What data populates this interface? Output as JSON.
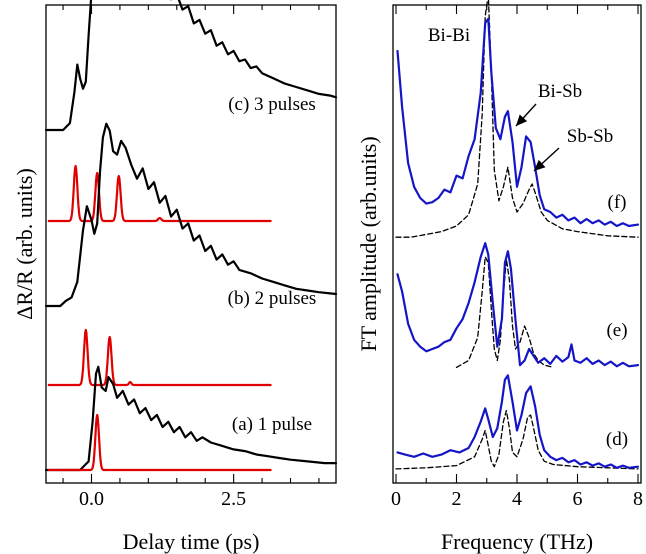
{
  "colors": {
    "black": "#000000",
    "red": "#e00000",
    "blue": "#1515c8"
  },
  "chart_data": [
    {
      "type": "line",
      "xlabel": "Delay time (ps)",
      "ylabel": "ΔR/R (arb. units)",
      "xlim": [
        -0.8,
        4.3
      ],
      "xticks": [
        "0.0",
        "2.5"
      ],
      "xtick_values": [
        0,
        2.5
      ],
      "minor_xticks": [
        -0.5,
        0.5,
        1,
        1.5,
        2,
        3,
        3.5,
        4
      ],
      "grid": false,
      "panels": [
        {
          "label": "(c) 3 pulses",
          "pulses": [
            -0.28,
            0.1,
            0.48
          ],
          "pulse_heights": [
            0.55,
            0.48,
            0.45
          ],
          "offset": 2.0,
          "reflectivity": {
            "x": [
              -0.8,
              -0.5,
              -0.38,
              -0.3,
              -0.25,
              -0.2,
              -0.15,
              -0.1,
              -0.05,
              0.0,
              0.05,
              0.1,
              0.15,
              0.2,
              0.25,
              0.3,
              0.35,
              0.42,
              0.5,
              0.55,
              0.6,
              0.65,
              0.72,
              0.8,
              0.9,
              1.0,
              1.1,
              1.2,
              1.3,
              1.4,
              1.5,
              1.6,
              1.7,
              1.8,
              1.9,
              2.0,
              2.1,
              2.2,
              2.3,
              2.4,
              2.5,
              2.6,
              2.7,
              2.8,
              2.9,
              3.0,
              3.2,
              3.4,
              3.6,
              3.8,
              4.0,
              4.2,
              4.3
            ],
            "y": [
              0.0,
              0.0,
              0.04,
              0.22,
              0.38,
              0.3,
              0.24,
              0.28,
              0.55,
              0.8,
              1.02,
              0.98,
              0.78,
              0.88,
              1.08,
              1.15,
              1.22,
              1.28,
              1.12,
              1.05,
              1.06,
              1.1,
              1.08,
              0.98,
              1.02,
              0.92,
              0.96,
              0.84,
              0.86,
              0.76,
              0.79,
              0.7,
              0.72,
              0.62,
              0.64,
              0.56,
              0.58,
              0.49,
              0.51,
              0.44,
              0.46,
              0.4,
              0.41,
              0.36,
              0.37,
              0.33,
              0.3,
              0.27,
              0.25,
              0.23,
              0.21,
              0.2,
              0.19
            ]
          }
        },
        {
          "label": "(b) 2 pulses",
          "pulses": [
            -0.1,
            0.32
          ],
          "pulse_heights": [
            0.55,
            0.48
          ],
          "offset": 1.0,
          "reflectivity": {
            "x": [
              -0.8,
              -0.55,
              -0.45,
              -0.35,
              -0.25,
              -0.15,
              -0.08,
              0.0,
              0.05,
              0.1,
              0.15,
              0.2,
              0.26,
              0.32,
              0.38,
              0.45,
              0.52,
              0.6,
              0.7,
              0.8,
              0.9,
              1.0,
              1.1,
              1.2,
              1.3,
              1.4,
              1.5,
              1.6,
              1.7,
              1.8,
              1.9,
              2.0,
              2.1,
              2.2,
              2.3,
              2.4,
              2.5,
              2.6,
              2.8,
              3.0,
              3.2,
              3.4,
              3.6,
              3.8,
              4.0,
              4.3
            ],
            "y": [
              0.0,
              0.0,
              0.03,
              0.05,
              0.14,
              0.44,
              0.58,
              0.5,
              0.42,
              0.48,
              0.78,
              0.98,
              1.06,
              1.02,
              0.9,
              0.88,
              0.96,
              0.92,
              0.82,
              0.74,
              0.8,
              0.68,
              0.72,
              0.6,
              0.64,
              0.52,
              0.56,
              0.45,
              0.48,
              0.38,
              0.41,
              0.32,
              0.35,
              0.27,
              0.3,
              0.24,
              0.26,
              0.21,
              0.19,
              0.16,
              0.14,
              0.12,
              0.1,
              0.09,
              0.08,
              0.07
            ]
          }
        },
        {
          "label": "(a) 1 pulse",
          "pulses": [
            0.1
          ],
          "pulse_heights": [
            0.55
          ],
          "offset": 0.0,
          "reflectivity": {
            "x": [
              -0.8,
              -0.2,
              -0.05,
              0.02,
              0.08,
              0.12,
              0.18,
              0.25,
              0.3,
              0.38,
              0.45,
              0.55,
              0.65,
              0.75,
              0.85,
              0.95,
              1.05,
              1.15,
              1.25,
              1.35,
              1.45,
              1.55,
              1.65,
              1.75,
              1.85,
              1.95,
              2.1,
              2.3,
              2.5,
              2.7,
              2.9,
              3.1,
              3.3,
              3.5,
              3.8,
              4.1,
              4.3
            ],
            "y": [
              0.0,
              0.0,
              0.05,
              0.28,
              0.56,
              0.6,
              0.48,
              0.46,
              0.54,
              0.5,
              0.42,
              0.46,
              0.38,
              0.41,
              0.33,
              0.36,
              0.29,
              0.32,
              0.25,
              0.28,
              0.22,
              0.25,
              0.19,
              0.22,
              0.17,
              0.19,
              0.16,
              0.14,
              0.12,
              0.11,
              0.09,
              0.08,
              0.07,
              0.06,
              0.05,
              0.04,
              0.04
            ]
          }
        }
      ]
    },
    {
      "type": "line",
      "xlabel": "Frequency (THz)",
      "ylabel": "FT amplitude (arb.units)",
      "xlim": [
        0,
        8
      ],
      "xticks": [
        "0",
        "2",
        "4",
        "6",
        "8"
      ],
      "xtick_values": [
        0,
        2,
        4,
        6,
        8
      ],
      "minor_xticks": [
        1,
        3,
        5,
        7
      ],
      "grid": false,
      "annotations": [
        "Bi-Bi",
        "Bi-Sb",
        "Sb-Sb"
      ],
      "annotation_x": [
        3.0,
        3.75,
        4.55
      ],
      "panels": [
        {
          "label": "(f)",
          "offset": 2.0,
          "measured": {
            "x": [
              0.05,
              0.2,
              0.4,
              0.6,
              0.8,
              1.0,
              1.2,
              1.4,
              1.6,
              1.8,
              2.0,
              2.2,
              2.4,
              2.6,
              2.8,
              2.95,
              3.05,
              3.15,
              3.3,
              3.45,
              3.6,
              3.7,
              3.85,
              4.0,
              4.15,
              4.3,
              4.45,
              4.6,
              4.75,
              4.9,
              5.1,
              5.3,
              5.5,
              5.7,
              5.9,
              6.1,
              6.3,
              6.5,
              6.7,
              6.9,
              7.1,
              7.3,
              7.5,
              7.7,
              8.0
            ],
            "y": [
              1.35,
              0.95,
              0.55,
              0.38,
              0.3,
              0.26,
              0.27,
              0.3,
              0.36,
              0.34,
              0.46,
              0.44,
              0.6,
              0.72,
              1.05,
              1.55,
              1.58,
              1.2,
              0.8,
              0.72,
              0.88,
              0.92,
              0.7,
              0.38,
              0.52,
              0.74,
              0.7,
              0.52,
              0.32,
              0.22,
              0.2,
              0.16,
              0.18,
              0.14,
              0.16,
              0.12,
              0.15,
              0.12,
              0.14,
              0.11,
              0.13,
              0.1,
              0.12,
              0.1,
              0.11
            ]
          },
          "model": {
            "x": [
              0.0,
              0.5,
              1.0,
              1.5,
              2.0,
              2.4,
              2.7,
              2.85,
              2.95,
              3.05,
              3.15,
              3.25,
              3.4,
              3.55,
              3.7,
              3.85,
              4.0,
              4.2,
              4.4,
              4.5,
              4.6,
              4.8,
              5.0,
              5.5,
              6.0,
              7.0,
              8.0
            ],
            "y": [
              0.02,
              0.02,
              0.04,
              0.06,
              0.1,
              0.18,
              0.4,
              0.9,
              1.6,
              1.75,
              1.2,
              0.5,
              0.28,
              0.38,
              0.52,
              0.3,
              0.2,
              0.26,
              0.36,
              0.4,
              0.34,
              0.2,
              0.14,
              0.08,
              0.06,
              0.03,
              0.02
            ]
          }
        },
        {
          "label": "(e)",
          "offset": 1.0,
          "measured": {
            "x": [
              0.05,
              0.2,
              0.4,
              0.6,
              0.8,
              1.0,
              1.2,
              1.4,
              1.6,
              1.8,
              2.0,
              2.2,
              2.4,
              2.6,
              2.8,
              2.95,
              3.05,
              3.2,
              3.35,
              3.5,
              3.6,
              3.7,
              3.8,
              3.95,
              4.1,
              4.25,
              4.4,
              4.55,
              4.7,
              4.9,
              5.1,
              5.3,
              5.5,
              5.7,
              5.8,
              5.9,
              6.1,
              6.3,
              6.5,
              6.7,
              6.9,
              7.1,
              7.3,
              7.5,
              7.7,
              8.0
            ],
            "y": [
              0.85,
              0.7,
              0.42,
              0.28,
              0.22,
              0.18,
              0.2,
              0.22,
              0.26,
              0.28,
              0.38,
              0.46,
              0.6,
              0.78,
              1.0,
              1.12,
              1.02,
              0.6,
              0.22,
              0.46,
              0.95,
              1.05,
              0.9,
              0.45,
              0.06,
              0.1,
              0.2,
              0.14,
              0.08,
              0.12,
              0.07,
              0.14,
              0.09,
              0.13,
              0.24,
              0.1,
              0.08,
              0.12,
              0.07,
              0.1,
              0.06,
              0.09,
              0.05,
              0.08,
              0.05,
              0.06
            ]
          },
          "model": {
            "x": [
              2.0,
              2.4,
              2.7,
              2.85,
              2.95,
              3.05,
              3.15,
              3.25,
              3.35,
              3.45,
              3.55,
              3.65,
              3.75,
              3.85,
              3.95,
              4.1,
              4.25,
              4.4,
              4.55,
              4.7,
              4.9,
              5.2
            ],
            "y": [
              0.04,
              0.1,
              0.3,
              0.7,
              1.0,
              0.95,
              0.55,
              0.2,
              0.1,
              0.28,
              0.68,
              0.98,
              0.8,
              0.4,
              0.2,
              0.26,
              0.4,
              0.3,
              0.16,
              0.1,
              0.06,
              0.04
            ]
          }
        },
        {
          "label": "(d)",
          "offset": 0.0,
          "measured": {
            "x": [
              0.05,
              0.3,
              0.6,
              0.9,
              1.2,
              1.5,
              1.8,
              2.1,
              2.4,
              2.6,
              2.8,
              2.95,
              3.05,
              3.2,
              3.35,
              3.5,
              3.6,
              3.7,
              3.85,
              4.0,
              4.15,
              4.3,
              4.45,
              4.6,
              4.75,
              4.9,
              5.1,
              5.3,
              5.5,
              5.7,
              5.9,
              6.1,
              6.3,
              6.5,
              6.7,
              6.9,
              7.1,
              7.3,
              7.5,
              7.7,
              8.0
            ],
            "y": [
              0.16,
              0.14,
              0.12,
              0.15,
              0.12,
              0.14,
              0.18,
              0.16,
              0.2,
              0.3,
              0.44,
              0.56,
              0.46,
              0.3,
              0.38,
              0.62,
              0.82,
              0.86,
              0.62,
              0.36,
              0.5,
              0.7,
              0.76,
              0.58,
              0.32,
              0.18,
              0.12,
              0.09,
              0.11,
              0.07,
              0.09,
              0.05,
              0.07,
              0.04,
              0.06,
              0.03,
              0.05,
              0.02,
              0.04,
              0.02,
              0.03
            ]
          },
          "model": {
            "x": [
              0.0,
              1.0,
              2.0,
              2.6,
              2.85,
              2.95,
              3.05,
              3.15,
              3.25,
              3.4,
              3.55,
              3.65,
              3.75,
              3.85,
              4.0,
              4.2,
              4.35,
              4.45,
              4.55,
              4.7,
              4.9,
              5.2,
              6.0,
              7.0,
              8.0
            ],
            "y": [
              0.01,
              0.02,
              0.04,
              0.12,
              0.28,
              0.36,
              0.22,
              0.08,
              0.03,
              0.14,
              0.44,
              0.54,
              0.38,
              0.16,
              0.12,
              0.28,
              0.48,
              0.5,
              0.38,
              0.18,
              0.08,
              0.05,
              0.03,
              0.02,
              0.01
            ]
          }
        }
      ]
    }
  ]
}
